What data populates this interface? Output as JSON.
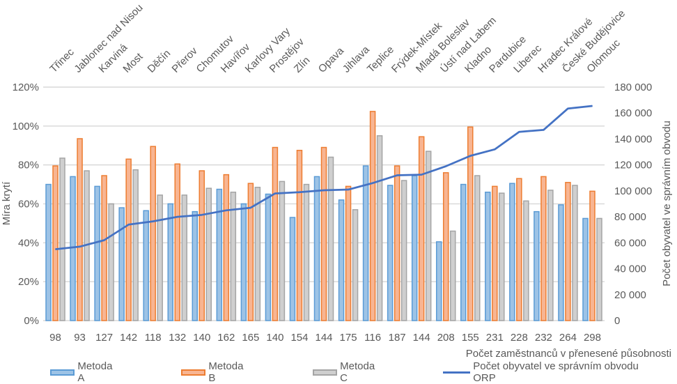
{
  "chart_data": {
    "type": "bar+line",
    "title": "",
    "cities": [
      "Třinec",
      "Jablonec nad Nisou",
      "Karviná",
      "Most",
      "Děčín",
      "Přerov",
      "Chomutov",
      "Havířov",
      "Karlovy Vary",
      "Prostějov",
      "Zlín",
      "Opava",
      "Jihlava",
      "Teplice",
      "Frýdek-Místek",
      "Mladá Boleslav",
      "Ústí nad Labem",
      "Kladno",
      "Pardubice",
      "Liberec",
      "Hradec Králové",
      "České Budějovice",
      "Olomouc"
    ],
    "categories": [
      "98",
      "93",
      "127",
      "142",
      "118",
      "132",
      "140",
      "162",
      "165",
      "140",
      "154",
      "144",
      "175",
      "116",
      "187",
      "144",
      "208",
      "155",
      "231",
      "228",
      "232",
      "264",
      "298"
    ],
    "xlabel": "Počet zaměstnanců v přenesené působnosti",
    "ylabel": "Míra krytí",
    "y2label": "Počet obyvatel ve správním obvodu",
    "ylim": [
      0,
      1.2
    ],
    "y2lim": [
      0,
      180000
    ],
    "yticks": [
      "0%",
      "20%",
      "40%",
      "60%",
      "80%",
      "100%",
      "120%"
    ],
    "y2ticks": [
      "0",
      "20 000",
      "40 000",
      "60 000",
      "80 000",
      "100 000",
      "120 000",
      "140 000",
      "160 000",
      "180 000"
    ],
    "grid": true,
    "legend_position": "bottom",
    "series": [
      {
        "name": "Metoda A",
        "type": "bar",
        "axis": "left",
        "color": "#5b9bd5",
        "fill": "#9dc3e6",
        "values": [
          0.7,
          0.74,
          0.69,
          0.58,
          0.565,
          0.6,
          0.56,
          0.675,
          0.6,
          0.65,
          0.53,
          0.74,
          0.62,
          0.795,
          0.695,
          0.745,
          0.405,
          0.7,
          0.66,
          0.705,
          0.56,
          0.595,
          0.525
        ]
      },
      {
        "name": "Metoda B",
        "type": "bar",
        "axis": "left",
        "color": "#ed7d31",
        "fill": "#f8b592",
        "values": [
          0.795,
          0.935,
          0.745,
          0.83,
          0.895,
          0.805,
          0.77,
          0.75,
          0.705,
          0.89,
          0.875,
          0.89,
          0.69,
          1.075,
          0.795,
          0.945,
          0.76,
          0.995,
          0.69,
          0.73,
          0.74,
          0.71,
          0.665
        ]
      },
      {
        "name": "Metoda C",
        "type": "bar",
        "axis": "left",
        "color": "#a5a5a5",
        "fill": "#cfcfcf",
        "values": [
          0.835,
          0.77,
          0.6,
          0.775,
          0.645,
          0.645,
          0.68,
          0.66,
          0.685,
          0.715,
          0.7,
          0.84,
          0.57,
          0.95,
          0.72,
          0.87,
          0.46,
          0.745,
          0.655,
          0.615,
          0.67,
          0.695,
          0.525
        ]
      },
      {
        "name": "Počet obyvatel ve správním obvodu ORP",
        "type": "line",
        "axis": "right",
        "color": "#4472c4",
        "values": [
          55000,
          57000,
          62000,
          74000,
          76500,
          80000,
          81500,
          85000,
          87000,
          98000,
          99000,
          100500,
          101000,
          106000,
          112000,
          112500,
          119000,
          127000,
          132000,
          145500,
          147000,
          163500,
          165500
        ]
      }
    ]
  },
  "colors": {
    "grid": "#d9d9d9",
    "text": "#595959"
  }
}
